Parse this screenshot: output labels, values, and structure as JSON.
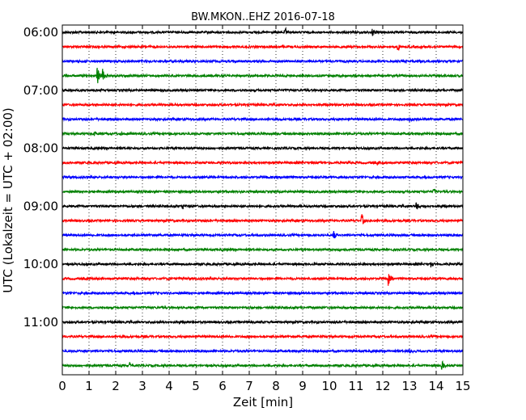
{
  "chart_data": {
    "type": "line",
    "title": "BW.MKON..EHZ 2016-07-18",
    "xlabel": "Zeit  [min]",
    "ylabel": "UTC (Lokalzeit = UTC + 02:00)",
    "xlim": [
      0,
      15
    ],
    "x_ticks": [
      "0",
      "1",
      "2",
      "3",
      "4",
      "5",
      "6",
      "7",
      "8",
      "9",
      "10",
      "11",
      "12",
      "13",
      "14",
      "15"
    ],
    "y_tick_labels": [
      "06:00",
      "07:00",
      "08:00",
      "09:00",
      "10:00",
      "11:00"
    ],
    "grid": "vertical dotted at each minute",
    "trace_colors": [
      "#000000",
      "#ff0000",
      "#0000ff",
      "#008000"
    ],
    "traces": [
      {
        "start": "06:00",
        "color": "#000000",
        "events": [
          {
            "t": 8.35,
            "amp": 0.45
          },
          {
            "t": 11.6,
            "amp": 0.55
          }
        ]
      },
      {
        "start": "06:15",
        "color": "#ff0000",
        "events": [
          {
            "t": 12.55,
            "amp": 0.6
          }
        ]
      },
      {
        "start": "06:30",
        "color": "#0000ff",
        "events": []
      },
      {
        "start": "06:45",
        "color": "#008000",
        "events": [
          {
            "t": 1.3,
            "amp": 1.1
          },
          {
            "t": 1.5,
            "amp": 1.0
          }
        ]
      },
      {
        "start": "07:00",
        "color": "#000000",
        "events": []
      },
      {
        "start": "07:15",
        "color": "#ff0000",
        "events": []
      },
      {
        "start": "07:30",
        "color": "#0000ff",
        "events": [
          {
            "t": 13.0,
            "amp": 0.5
          }
        ]
      },
      {
        "start": "07:45",
        "color": "#008000",
        "events": [
          {
            "t": 1.2,
            "amp": 0.35
          },
          {
            "t": 2.2,
            "amp": 0.3
          }
        ]
      },
      {
        "start": "08:00",
        "color": "#000000",
        "events": []
      },
      {
        "start": "08:15",
        "color": "#ff0000",
        "events": [
          {
            "t": 11.8,
            "amp": 0.3
          }
        ]
      },
      {
        "start": "08:30",
        "color": "#0000ff",
        "events": []
      },
      {
        "start": "08:45",
        "color": "#008000",
        "events": [
          {
            "t": 13.9,
            "amp": 0.45
          }
        ]
      },
      {
        "start": "09:00",
        "color": "#000000",
        "events": [
          {
            "t": 4.5,
            "amp": 0.35
          },
          {
            "t": 13.25,
            "amp": 0.6
          }
        ]
      },
      {
        "start": "09:15",
        "color": "#ff0000",
        "events": [
          {
            "t": 11.2,
            "amp": 0.8
          }
        ]
      },
      {
        "start": "09:30",
        "color": "#0000ff",
        "events": [
          {
            "t": 10.15,
            "amp": 0.6
          }
        ]
      },
      {
        "start": "09:45",
        "color": "#008000",
        "events": [
          {
            "t": 10.4,
            "amp": 0.3
          }
        ]
      },
      {
        "start": "10:00",
        "color": "#000000",
        "events": [
          {
            "t": 13.8,
            "amp": 0.3
          }
        ]
      },
      {
        "start": "10:15",
        "color": "#ff0000",
        "events": [
          {
            "t": 12.2,
            "amp": 0.95
          }
        ]
      },
      {
        "start": "10:30",
        "color": "#0000ff",
        "events": []
      },
      {
        "start": "10:45",
        "color": "#008000",
        "events": []
      },
      {
        "start": "11:00",
        "color": "#000000",
        "events": [
          {
            "t": 7.0,
            "amp": 0.3
          }
        ]
      },
      {
        "start": "11:15",
        "color": "#ff0000",
        "events": []
      },
      {
        "start": "11:30",
        "color": "#0000ff",
        "events": [
          {
            "t": 13.0,
            "amp": 0.35
          }
        ]
      },
      {
        "start": "11:45",
        "color": "#008000",
        "events": [
          {
            "t": 2.5,
            "amp": 0.45
          },
          {
            "t": 14.2,
            "amp": 0.6
          }
        ]
      }
    ]
  }
}
